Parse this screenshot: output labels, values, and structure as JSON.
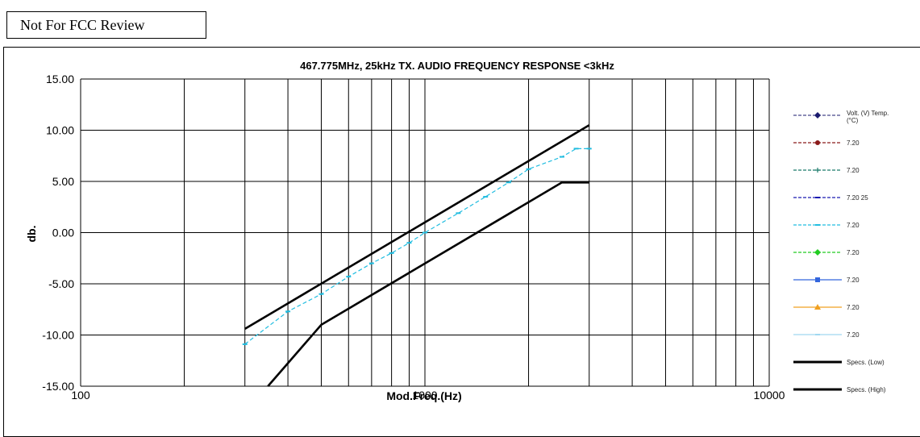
{
  "stamp": "Not For FCC Review",
  "chart_data": {
    "type": "line",
    "title": "467.775MHz, 25kHz TX. AUDIO FREQUENCY RESPONSE <3kHz",
    "xlabel": "Mod.Freq.(Hz)",
    "ylabel": "db.",
    "xscale": "log",
    "xlim": [
      100,
      10000
    ],
    "ylim": [
      -15,
      15
    ],
    "grid": true,
    "legend_position": "right",
    "x_tick_labels": [
      "100",
      "1000",
      "10000"
    ],
    "y_tick_labels": [
      "15.00",
      "10.00",
      "5.00",
      "0.00",
      "-5.00",
      "-10.00",
      "-15.00"
    ],
    "legend_header": "Volt. (V) Temp. (°C)",
    "series": [
      {
        "name": "7.20",
        "color": "#8b1a1a",
        "marker": "circle",
        "dash": true,
        "x": [],
        "y": []
      },
      {
        "name": "7.20",
        "color": "#1a7a6a",
        "marker": "plus",
        "dash": true,
        "x": [],
        "y": []
      },
      {
        "name": "7.20 25",
        "color": "#1a1ab0",
        "marker": "dash",
        "dash": true,
        "x": [],
        "y": []
      },
      {
        "name": "7.20",
        "color": "#22bde0",
        "marker": "dash",
        "dash": true,
        "x": [
          300,
          400,
          500,
          600,
          700,
          800,
          900,
          1000,
          1250,
          1500,
          1750,
          2000,
          2500,
          2750,
          3000
        ],
        "y": [
          -10.9,
          -7.7,
          -6.0,
          -4.3,
          -3.0,
          -2.0,
          -1.0,
          0.0,
          1.9,
          3.5,
          4.9,
          6.2,
          7.4,
          8.2,
          8.2
        ]
      },
      {
        "name": "7.20",
        "color": "#22cc22",
        "marker": "diamond",
        "dash": true,
        "x": [],
        "y": []
      },
      {
        "name": "7.20",
        "color": "#3366dd",
        "marker": "square",
        "dash": false,
        "x": [],
        "y": []
      },
      {
        "name": "7.20",
        "color": "#f0a020",
        "marker": "triangle",
        "dash": false,
        "x": [],
        "y": []
      },
      {
        "name": "7.20",
        "color": "#a0d8f0",
        "marker": "dash",
        "dash": false,
        "x": [],
        "y": []
      },
      {
        "name": "Specs. (Low)",
        "color": "#000000",
        "marker": "none",
        "dash": false,
        "x": [
          350,
          500,
          2500,
          3000
        ],
        "y": [
          -15.0,
          -9.0,
          4.9,
          4.9
        ]
      },
      {
        "name": "Specs. (High)",
        "color": "#000000",
        "marker": "none",
        "dash": false,
        "x": [
          300,
          3000
        ],
        "y": [
          -9.4,
          10.5
        ]
      }
    ]
  }
}
